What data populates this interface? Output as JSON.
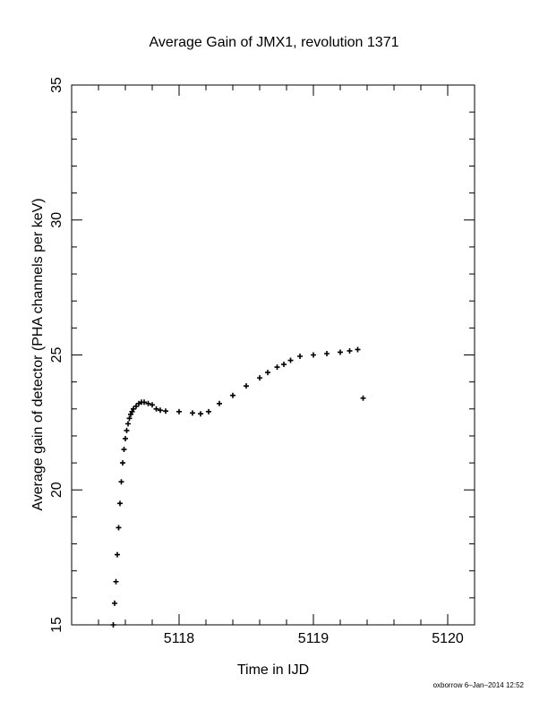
{
  "chart_data": {
    "type": "scatter",
    "title": "Average Gain of JMX1, revolution 1371",
    "xlabel": "Time in IJD",
    "ylabel": "Average gain of detector (PHA channels per keV)",
    "xlim": [
      5117.2,
      5120.2
    ],
    "ylim": [
      15,
      35
    ],
    "xticks": [
      5118,
      5119,
      5120
    ],
    "yticks": [
      15,
      20,
      25,
      30,
      35
    ],
    "x_minor_step": 0.2,
    "y_minor_step": 1,
    "grid": false,
    "marker": "plus",
    "series": [
      {
        "x": [
          5117.51,
          5117.52,
          5117.53,
          5117.54,
          5117.55,
          5117.56,
          5117.57,
          5117.58,
          5117.59,
          5117.6,
          5117.61,
          5117.62,
          5117.63,
          5117.64,
          5117.65,
          5117.66,
          5117.68,
          5117.7,
          5117.72,
          5117.74,
          5117.77,
          5117.8,
          5117.83,
          5117.86,
          5117.9,
          5118.0,
          5118.1,
          5118.16,
          5118.22,
          5118.3,
          5118.4,
          5118.5,
          5118.6,
          5118.66,
          5118.73,
          5118.78,
          5118.83,
          5118.9,
          5119.0,
          5119.1,
          5119.2,
          5119.27,
          5119.33,
          5119.37
        ],
        "y": [
          15.0,
          15.8,
          16.6,
          17.6,
          18.6,
          19.5,
          20.3,
          21.0,
          21.5,
          21.9,
          22.2,
          22.45,
          22.65,
          22.8,
          22.9,
          23.0,
          23.1,
          23.2,
          23.25,
          23.25,
          23.2,
          23.15,
          23.0,
          22.95,
          22.92,
          22.9,
          22.85,
          22.82,
          22.9,
          23.2,
          23.5,
          23.85,
          24.15,
          24.35,
          24.55,
          24.65,
          24.8,
          24.95,
          25.0,
          25.05,
          25.1,
          25.15,
          25.2,
          23.4
        ]
      }
    ]
  },
  "footer": {
    "stamp": "oxborrow  6–Jan–2014 12:52"
  }
}
